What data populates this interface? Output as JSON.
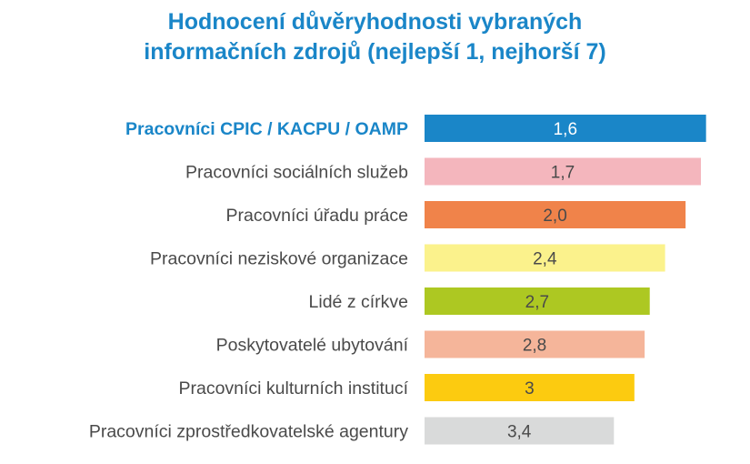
{
  "chart_data": {
    "type": "bar",
    "orientation": "horizontal",
    "title_lines": [
      "Hodnocení důvěryhodnosti vybraných",
      "informačních zdrojů (nejlepší 1, nejhorší 7)"
    ],
    "categories": [
      "Pracovníci CPIC / KACPU / OAMP",
      "Pracovníci sociálních služeb",
      "Pracovníci úřadu práce",
      "Pracovníci neziskové organizace",
      "Lidé z církve",
      "Poskytovatelé ubytování",
      "Pracovníci kulturních institucí",
      "Pracovníci zprostředkovatelské agentury"
    ],
    "values": [
      1.6,
      1.7,
      2.0,
      2.4,
      2.7,
      2.8,
      3.0,
      3.4
    ],
    "value_labels": [
      "1,6",
      "1,7",
      "2,0",
      "2,4",
      "2,7",
      "2,8",
      "3",
      "3,4"
    ],
    "bar_colors": [
      "#1a86c8",
      "#f4b6bd",
      "#f0834a",
      "#fbf28c",
      "#adc822",
      "#f5b59a",
      "#fccb10",
      "#d9dada"
    ],
    "highlight_index": 0,
    "bar_length_note": "bars are longer for better (lower) ratings",
    "scale": "best 1, worst 7",
    "grid": false,
    "legend": "none"
  }
}
